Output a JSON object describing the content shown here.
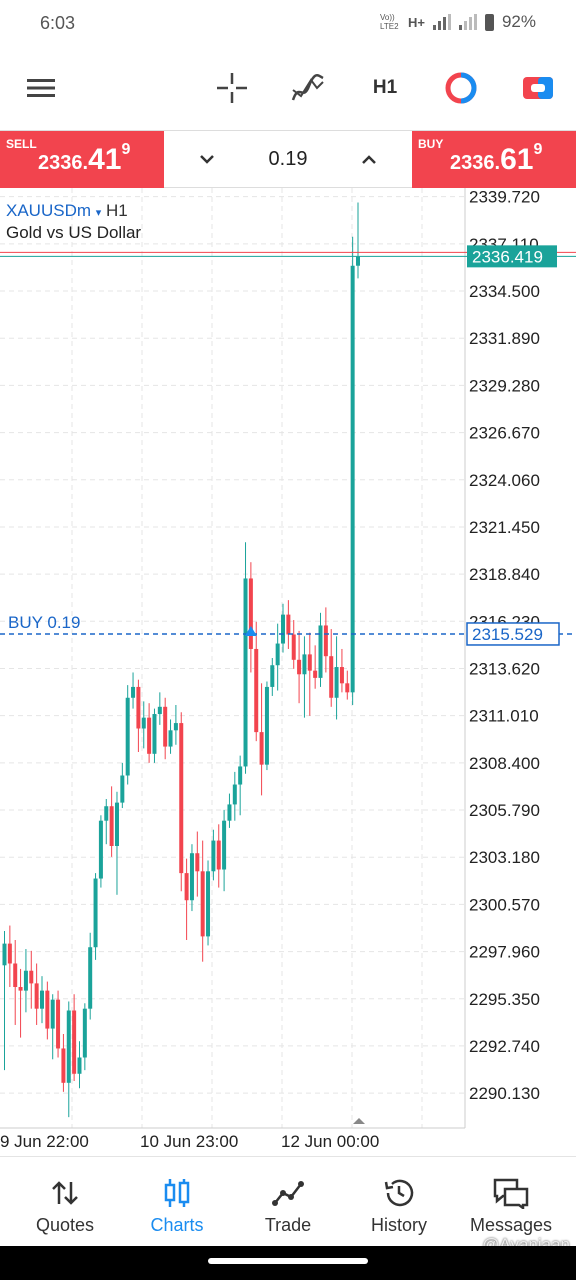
{
  "status_bar": {
    "time": "6:03",
    "network_label": "H+",
    "volte_label": "Vo)) LTE2",
    "battery": "92%"
  },
  "toolbar": {
    "menu_icon": "hamburger-menu-icon",
    "crosshair_icon": "crosshair-icon",
    "indicators_icon": "indicators-icon",
    "timeframe": "H1",
    "colors_icon": "chart-colors-icon",
    "trade_icon": "one-click-trade-icon"
  },
  "trade_panel": {
    "sell_label": "SELL",
    "sell_price_main": "2336.",
    "sell_price_big": "41",
    "sell_price_sup": "9",
    "buy_label": "BUY",
    "buy_price_main": "2336.",
    "buy_price_big": "61",
    "buy_price_sup": "9",
    "lot": "0.19",
    "colors": {
      "sell": "#f2444e",
      "buy": "#f2444e"
    }
  },
  "chart": {
    "symbol": "XAUUSDm",
    "timeframe": "H1",
    "description": "Gold vs US Dollar",
    "price_label": "2336.419",
    "position_label": "BUY 0.19",
    "position_price_label": "2315.529",
    "colors": {
      "bull": "#1aa39a",
      "bear": "#f2444e",
      "position": "#1a66c8",
      "grid": "#e5e5e5"
    }
  },
  "chart_data": {
    "type": "candlestick",
    "y_ticks": [
      "2339.720",
      "2337.110",
      "2334.500",
      "2331.890",
      "2329.280",
      "2326.670",
      "2324.060",
      "2321.450",
      "2318.840",
      "2316.230",
      "2313.620",
      "2311.010",
      "2308.400",
      "2305.790",
      "2303.180",
      "2300.570",
      "2297.960",
      "2295.350",
      "2292.740",
      "2290.130"
    ],
    "x_ticks": [
      "9 Jun 22:00",
      "10 Jun 23:00",
      "12 Jun 00:00"
    ],
    "ylim": [
      2288.2,
      2340.2
    ],
    "bid": 2336.419,
    "position_open": 2315.529,
    "candles": [
      {
        "o": 2297.2,
        "h": 2299.1,
        "l": 2291.4,
        "c": 2298.4
      },
      {
        "o": 2298.4,
        "h": 2299.4,
        "l": 2296.0,
        "c": 2297.3
      },
      {
        "o": 2297.3,
        "h": 2298.6,
        "l": 2293.9,
        "c": 2296.0
      },
      {
        "o": 2296.0,
        "h": 2297.0,
        "l": 2293.2,
        "c": 2295.8
      },
      {
        "o": 2295.8,
        "h": 2298.1,
        "l": 2294.6,
        "c": 2296.9
      },
      {
        "o": 2296.9,
        "h": 2298.0,
        "l": 2294.8,
        "c": 2296.2
      },
      {
        "o": 2296.2,
        "h": 2297.3,
        "l": 2293.9,
        "c": 2294.8
      },
      {
        "o": 2294.8,
        "h": 2296.6,
        "l": 2294.0,
        "c": 2295.8
      },
      {
        "o": 2295.8,
        "h": 2296.3,
        "l": 2293.1,
        "c": 2293.7
      },
      {
        "o": 2293.7,
        "h": 2295.6,
        "l": 2292.0,
        "c": 2295.3
      },
      {
        "o": 2295.3,
        "h": 2295.8,
        "l": 2292.1,
        "c": 2292.6
      },
      {
        "o": 2292.6,
        "h": 2293.4,
        "l": 2290.2,
        "c": 2290.7
      },
      {
        "o": 2290.7,
        "h": 2295.2,
        "l": 2288.8,
        "c": 2294.7
      },
      {
        "o": 2294.7,
        "h": 2295.6,
        "l": 2290.8,
        "c": 2291.2
      },
      {
        "o": 2291.2,
        "h": 2293.0,
        "l": 2290.4,
        "c": 2292.1
      },
      {
        "o": 2292.1,
        "h": 2295.1,
        "l": 2291.4,
        "c": 2294.8
      },
      {
        "o": 2294.8,
        "h": 2299.0,
        "l": 2294.2,
        "c": 2298.2
      },
      {
        "o": 2298.2,
        "h": 2302.3,
        "l": 2297.5,
        "c": 2302.0
      },
      {
        "o": 2302.0,
        "h": 2305.5,
        "l": 2301.5,
        "c": 2305.2
      },
      {
        "o": 2305.2,
        "h": 2306.4,
        "l": 2303.9,
        "c": 2306.0
      },
      {
        "o": 2306.0,
        "h": 2307.1,
        "l": 2303.2,
        "c": 2303.8
      },
      {
        "o": 2303.8,
        "h": 2306.8,
        "l": 2301.1,
        "c": 2306.2
      },
      {
        "o": 2306.2,
        "h": 2308.4,
        "l": 2305.9,
        "c": 2307.7
      },
      {
        "o": 2307.7,
        "h": 2312.7,
        "l": 2307.2,
        "c": 2312.0
      },
      {
        "o": 2312.0,
        "h": 2313.4,
        "l": 2311.4,
        "c": 2312.6
      },
      {
        "o": 2312.6,
        "h": 2313.0,
        "l": 2309.0,
        "c": 2310.3
      },
      {
        "o": 2310.3,
        "h": 2311.8,
        "l": 2309.2,
        "c": 2310.9
      },
      {
        "o": 2310.9,
        "h": 2311.7,
        "l": 2308.4,
        "c": 2308.9
      },
      {
        "o": 2308.9,
        "h": 2311.4,
        "l": 2308.4,
        "c": 2311.1
      },
      {
        "o": 2311.1,
        "h": 2312.3,
        "l": 2310.5,
        "c": 2311.5
      },
      {
        "o": 2311.5,
        "h": 2312.0,
        "l": 2308.6,
        "c": 2309.3
      },
      {
        "o": 2309.3,
        "h": 2310.8,
        "l": 2308.9,
        "c": 2310.2
      },
      {
        "o": 2310.2,
        "h": 2311.6,
        "l": 2309.4,
        "c": 2310.6
      },
      {
        "o": 2310.6,
        "h": 2311.2,
        "l": 2301.3,
        "c": 2302.3
      },
      {
        "o": 2302.3,
        "h": 2303.1,
        "l": 2298.6,
        "c": 2300.8
      },
      {
        "o": 2300.8,
        "h": 2303.9,
        "l": 2300.2,
        "c": 2303.4
      },
      {
        "o": 2303.4,
        "h": 2304.6,
        "l": 2301.0,
        "c": 2302.4
      },
      {
        "o": 2302.4,
        "h": 2304.1,
        "l": 2297.4,
        "c": 2298.8
      },
      {
        "o": 2298.8,
        "h": 2303.0,
        "l": 2298.3,
        "c": 2302.4
      },
      {
        "o": 2302.4,
        "h": 2304.7,
        "l": 2301.9,
        "c": 2304.1
      },
      {
        "o": 2304.1,
        "h": 2305.0,
        "l": 2301.5,
        "c": 2302.5
      },
      {
        "o": 2302.5,
        "h": 2305.8,
        "l": 2301.3,
        "c": 2305.2
      },
      {
        "o": 2305.2,
        "h": 2306.7,
        "l": 2304.8,
        "c": 2306.1
      },
      {
        "o": 2306.1,
        "h": 2307.9,
        "l": 2305.2,
        "c": 2307.2
      },
      {
        "o": 2307.2,
        "h": 2308.8,
        "l": 2305.5,
        "c": 2308.2
      },
      {
        "o": 2308.2,
        "h": 2320.6,
        "l": 2307.8,
        "c": 2318.6
      },
      {
        "o": 2318.6,
        "h": 2319.5,
        "l": 2313.4,
        "c": 2314.7
      },
      {
        "o": 2314.7,
        "h": 2316.2,
        "l": 2309.6,
        "c": 2310.1
      },
      {
        "o": 2310.1,
        "h": 2312.8,
        "l": 2306.6,
        "c": 2308.3
      },
      {
        "o": 2308.3,
        "h": 2312.9,
        "l": 2308.0,
        "c": 2312.6
      },
      {
        "o": 2312.6,
        "h": 2314.2,
        "l": 2312.1,
        "c": 2313.8
      },
      {
        "o": 2313.8,
        "h": 2316.1,
        "l": 2312.4,
        "c": 2315.0
      },
      {
        "o": 2315.0,
        "h": 2317.2,
        "l": 2314.5,
        "c": 2316.6
      },
      {
        "o": 2316.6,
        "h": 2317.4,
        "l": 2314.7,
        "c": 2315.5
      },
      {
        "o": 2315.5,
        "h": 2316.3,
        "l": 2313.6,
        "c": 2314.1
      },
      {
        "o": 2314.1,
        "h": 2315.7,
        "l": 2311.7,
        "c": 2313.3
      },
      {
        "o": 2313.3,
        "h": 2315.4,
        "l": 2310.9,
        "c": 2314.4
      },
      {
        "o": 2314.4,
        "h": 2315.6,
        "l": 2311.0,
        "c": 2313.5
      },
      {
        "o": 2313.5,
        "h": 2314.9,
        "l": 2312.5,
        "c": 2313.1
      },
      {
        "o": 2313.1,
        "h": 2316.7,
        "l": 2312.6,
        "c": 2316.0
      },
      {
        "o": 2316.0,
        "h": 2317.0,
        "l": 2313.4,
        "c": 2314.3
      },
      {
        "o": 2314.3,
        "h": 2315.8,
        "l": 2311.5,
        "c": 2312.0
      },
      {
        "o": 2312.0,
        "h": 2315.4,
        "l": 2310.8,
        "c": 2313.7
      },
      {
        "o": 2313.7,
        "h": 2314.7,
        "l": 2312.3,
        "c": 2312.8
      },
      {
        "o": 2312.8,
        "h": 2313.5,
        "l": 2311.9,
        "c": 2312.3
      },
      {
        "o": 2312.3,
        "h": 2337.5,
        "l": 2311.6,
        "c": 2335.9
      },
      {
        "o": 2335.9,
        "h": 2339.4,
        "l": 2335.2,
        "c": 2336.4
      }
    ]
  },
  "bottom_nav": {
    "items": [
      {
        "label": "Quotes",
        "icon": "quotes-arrows-icon"
      },
      {
        "label": "Charts",
        "icon": "charts-candles-icon"
      },
      {
        "label": "Trade",
        "icon": "trade-line-icon"
      },
      {
        "label": "History",
        "icon": "history-clock-icon"
      },
      {
        "label": "Messages",
        "icon": "messages-icon"
      }
    ],
    "active": "Charts",
    "active_color": "#1a8cf0"
  },
  "watermark": "@Ayanjaan"
}
